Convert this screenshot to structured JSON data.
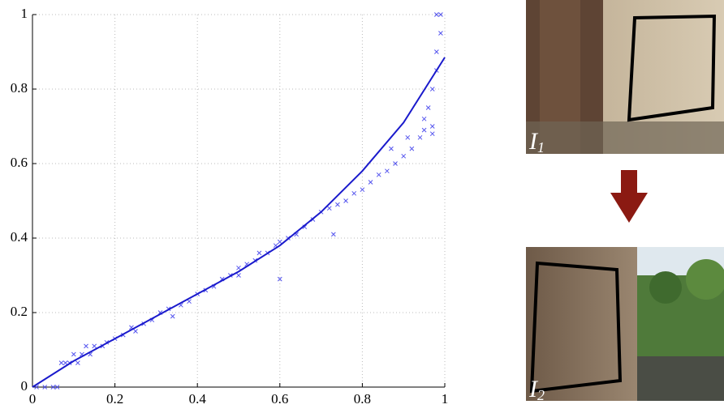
{
  "chart_data": {
    "type": "scatter",
    "xlim": [
      0,
      1
    ],
    "ylim": [
      0,
      1
    ],
    "xticks": [
      0,
      0.2,
      0.4,
      0.6,
      0.8,
      1
    ],
    "yticks": [
      0,
      0.2,
      0.4,
      0.6,
      0.8,
      1
    ],
    "grid": true,
    "points": {
      "color": "#5555ee",
      "x": [
        0.01,
        0.03,
        0.05,
        0.06,
        0.07,
        0.08,
        0.09,
        0.11,
        0.1,
        0.12,
        0.14,
        0.13,
        0.15,
        0.17,
        0.18,
        0.2,
        0.22,
        0.24,
        0.25,
        0.27,
        0.29,
        0.31,
        0.33,
        0.34,
        0.36,
        0.38,
        0.4,
        0.42,
        0.44,
        0.46,
        0.48,
        0.5,
        0.5,
        0.52,
        0.54,
        0.55,
        0.57,
        0.59,
        0.6,
        0.6,
        0.62,
        0.64,
        0.66,
        0.68,
        0.7,
        0.72,
        0.73,
        0.74,
        0.76,
        0.78,
        0.8,
        0.82,
        0.84,
        0.86,
        0.87,
        0.88,
        0.9,
        0.91,
        0.92,
        0.94,
        0.95,
        0.95,
        0.96,
        0.97,
        0.97,
        0.98,
        0.98,
        0.98,
        0.99,
        0.99,
        0.97
      ],
      "y": [
        0,
        0,
        0,
        0,
        0.065,
        0.065,
        0.065,
        0.065,
        0.088,
        0.088,
        0.088,
        0.11,
        0.11,
        0.11,
        0.12,
        0.13,
        0.14,
        0.16,
        0.15,
        0.17,
        0.18,
        0.2,
        0.21,
        0.19,
        0.22,
        0.23,
        0.25,
        0.26,
        0.27,
        0.29,
        0.3,
        0.3,
        0.32,
        0.33,
        0.34,
        0.36,
        0.36,
        0.38,
        0.39,
        0.29,
        0.4,
        0.41,
        0.43,
        0.45,
        0.47,
        0.48,
        0.41,
        0.49,
        0.5,
        0.52,
        0.53,
        0.55,
        0.57,
        0.58,
        0.64,
        0.6,
        0.62,
        0.67,
        0.64,
        0.67,
        0.72,
        0.69,
        0.75,
        0.7,
        0.8,
        0.85,
        0.9,
        1,
        0.95,
        1,
        0.68
      ]
    },
    "fit": {
      "color": "#1a1acc",
      "x": [
        0,
        0.1,
        0.2,
        0.3,
        0.4,
        0.5,
        0.6,
        0.7,
        0.8,
        0.9,
        1
      ],
      "y": [
        0,
        0.07,
        0.13,
        0.19,
        0.25,
        0.31,
        0.38,
        0.47,
        0.58,
        0.71,
        0.885
      ]
    }
  },
  "images": [
    {
      "label": "I",
      "sub": "1"
    },
    {
      "label": "I",
      "sub": "2"
    }
  ]
}
